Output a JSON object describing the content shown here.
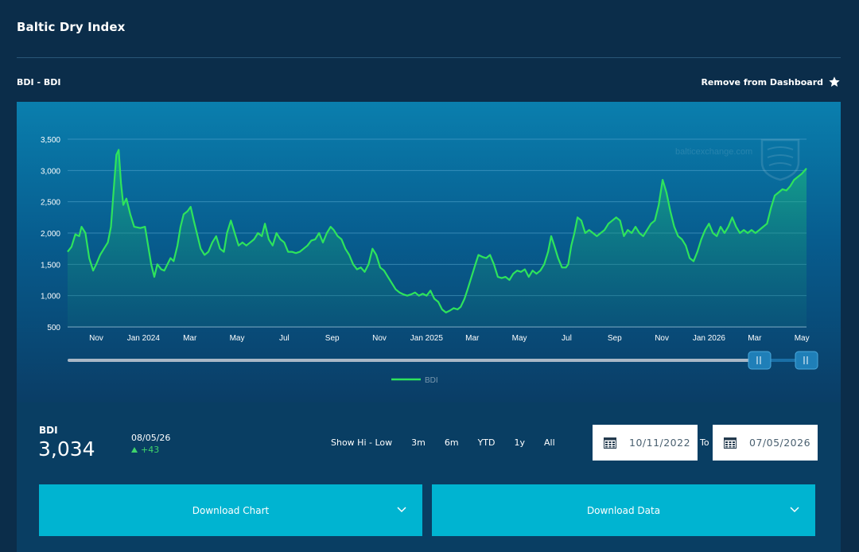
{
  "header": {
    "title": "Baltic Dry Index"
  },
  "series_label": "BDI - BDI",
  "dashboard_link": {
    "label": "Remove from Dashboard",
    "icon": "star-icon"
  },
  "watermark": {
    "text": "balticexchange.com"
  },
  "colors": {
    "line": "#2ee35c",
    "accent": "#00b4d1",
    "background": "#0b2d4a"
  },
  "chart_data": {
    "type": "area",
    "title": "",
    "xlabel": "",
    "ylabel": "",
    "ylim": [
      500,
      3500
    ],
    "y_ticks": [
      500,
      1000,
      1500,
      2000,
      2500,
      3000,
      3500
    ],
    "y_tick_labels": [
      "500",
      "1,000",
      "1,500",
      "2,000",
      "2,500",
      "3,000",
      "3,500"
    ],
    "x_range": [
      "2023-09-25",
      "2026-05-07"
    ],
    "x_ticks": [
      {
        "date": "2023-11-01",
        "label": "Nov"
      },
      {
        "date": "2024-01-01",
        "label": "Jan 2024"
      },
      {
        "date": "2024-03-01",
        "label": "Mar"
      },
      {
        "date": "2024-05-01",
        "label": "May"
      },
      {
        "date": "2024-07-01",
        "label": "Jul"
      },
      {
        "date": "2024-09-01",
        "label": "Sep"
      },
      {
        "date": "2024-11-01",
        "label": "Nov"
      },
      {
        "date": "2025-01-01",
        "label": "Jan 2025"
      },
      {
        "date": "2025-03-01",
        "label": "Mar"
      },
      {
        "date": "2025-05-01",
        "label": "May"
      },
      {
        "date": "2025-07-01",
        "label": "Jul"
      },
      {
        "date": "2025-09-01",
        "label": "Sep"
      },
      {
        "date": "2025-11-01",
        "label": "Nov"
      },
      {
        "date": "2026-01-01",
        "label": "Jan 2026"
      },
      {
        "date": "2026-03-01",
        "label": "Mar"
      },
      {
        "date": "2026-05-01",
        "label": "May"
      }
    ],
    "grid": true,
    "legend": {
      "position": "bottom-center",
      "entries": [
        "BDI"
      ]
    },
    "series": [
      {
        "name": "BDI",
        "points": [
          [
            "2023-09-25",
            1700
          ],
          [
            "2023-09-30",
            1780
          ],
          [
            "2023-10-05",
            1980
          ],
          [
            "2023-10-10",
            1950
          ],
          [
            "2023-10-13",
            2100
          ],
          [
            "2023-10-18",
            2000
          ],
          [
            "2023-10-23",
            1600
          ],
          [
            "2023-10-28",
            1400
          ],
          [
            "2023-11-01",
            1500
          ],
          [
            "2023-11-06",
            1650
          ],
          [
            "2023-11-11",
            1750
          ],
          [
            "2023-11-16",
            1850
          ],
          [
            "2023-11-20",
            2100
          ],
          [
            "2023-11-23",
            2600
          ],
          [
            "2023-11-27",
            3250
          ],
          [
            "2023-11-30",
            3330
          ],
          [
            "2023-12-03",
            2800
          ],
          [
            "2023-12-06",
            2450
          ],
          [
            "2023-12-10",
            2550
          ],
          [
            "2023-12-15",
            2300
          ],
          [
            "2023-12-20",
            2100
          ],
          [
            "2023-12-28",
            2080
          ],
          [
            "2024-01-03",
            2100
          ],
          [
            "2024-01-07",
            1800
          ],
          [
            "2024-01-11",
            1500
          ],
          [
            "2024-01-15",
            1300
          ],
          [
            "2024-01-19",
            1500
          ],
          [
            "2024-01-24",
            1420
          ],
          [
            "2024-01-28",
            1400
          ],
          [
            "2024-02-01",
            1500
          ],
          [
            "2024-02-05",
            1600
          ],
          [
            "2024-02-09",
            1550
          ],
          [
            "2024-02-14",
            1800
          ],
          [
            "2024-02-18",
            2100
          ],
          [
            "2024-02-22",
            2300
          ],
          [
            "2024-02-27",
            2350
          ],
          [
            "2024-03-02",
            2420
          ],
          [
            "2024-03-06",
            2200
          ],
          [
            "2024-03-10",
            2000
          ],
          [
            "2024-03-15",
            1750
          ],
          [
            "2024-03-20",
            1650
          ],
          [
            "2024-03-25",
            1700
          ],
          [
            "2024-03-30",
            1850
          ],
          [
            "2024-04-04",
            1950
          ],
          [
            "2024-04-09",
            1750
          ],
          [
            "2024-04-14",
            1700
          ],
          [
            "2024-04-18",
            2000
          ],
          [
            "2024-04-23",
            2200
          ],
          [
            "2024-04-28",
            2000
          ],
          [
            "2024-05-03",
            1800
          ],
          [
            "2024-05-08",
            1850
          ],
          [
            "2024-05-13",
            1800
          ],
          [
            "2024-05-18",
            1850
          ],
          [
            "2024-05-23",
            1900
          ],
          [
            "2024-05-28",
            2000
          ],
          [
            "2024-06-02",
            1950
          ],
          [
            "2024-06-06",
            2150
          ],
          [
            "2024-06-11",
            1900
          ],
          [
            "2024-06-16",
            1800
          ],
          [
            "2024-06-21",
            2000
          ],
          [
            "2024-06-26",
            1900
          ],
          [
            "2024-07-01",
            1850
          ],
          [
            "2024-07-06",
            1700
          ],
          [
            "2024-07-11",
            1700
          ],
          [
            "2024-07-16",
            1680
          ],
          [
            "2024-07-21",
            1700
          ],
          [
            "2024-07-26",
            1750
          ],
          [
            "2024-07-31",
            1800
          ],
          [
            "2024-08-05",
            1880
          ],
          [
            "2024-08-10",
            1900
          ],
          [
            "2024-08-15",
            2000
          ],
          [
            "2024-08-20",
            1850
          ],
          [
            "2024-08-25",
            2000
          ],
          [
            "2024-08-30",
            2100
          ],
          [
            "2024-09-03",
            2050
          ],
          [
            "2024-09-08",
            1950
          ],
          [
            "2024-09-13",
            1900
          ],
          [
            "2024-09-18",
            1750
          ],
          [
            "2024-09-23",
            1650
          ],
          [
            "2024-09-28",
            1500
          ],
          [
            "2024-10-03",
            1420
          ],
          [
            "2024-10-08",
            1450
          ],
          [
            "2024-10-13",
            1380
          ],
          [
            "2024-10-18",
            1500
          ],
          [
            "2024-10-23",
            1750
          ],
          [
            "2024-10-28",
            1650
          ],
          [
            "2024-11-02",
            1450
          ],
          [
            "2024-11-07",
            1400
          ],
          [
            "2024-11-12",
            1300
          ],
          [
            "2024-11-17",
            1200
          ],
          [
            "2024-11-22",
            1100
          ],
          [
            "2024-11-27",
            1050
          ],
          [
            "2024-12-02",
            1020
          ],
          [
            "2024-12-07",
            1000
          ],
          [
            "2024-12-12",
            1020
          ],
          [
            "2024-12-17",
            1050
          ],
          [
            "2024-12-22",
            1000
          ],
          [
            "2024-12-27",
            1030
          ],
          [
            "2025-01-01",
            1000
          ],
          [
            "2025-01-06",
            1080
          ],
          [
            "2025-01-11",
            950
          ],
          [
            "2025-01-16",
            900
          ],
          [
            "2025-01-21",
            780
          ],
          [
            "2025-01-26",
            730
          ],
          [
            "2025-01-31",
            760
          ],
          [
            "2025-02-05",
            800
          ],
          [
            "2025-02-10",
            780
          ],
          [
            "2025-02-14",
            820
          ],
          [
            "2025-02-19",
            950
          ],
          [
            "2025-02-23",
            1100
          ],
          [
            "2025-02-28",
            1300
          ],
          [
            "2025-03-05",
            1500
          ],
          [
            "2025-03-09",
            1650
          ],
          [
            "2025-03-14",
            1620
          ],
          [
            "2025-03-19",
            1600
          ],
          [
            "2025-03-24",
            1650
          ],
          [
            "2025-03-29",
            1500
          ],
          [
            "2025-04-03",
            1300
          ],
          [
            "2025-04-08",
            1280
          ],
          [
            "2025-04-13",
            1300
          ],
          [
            "2025-04-18",
            1250
          ],
          [
            "2025-04-23",
            1350
          ],
          [
            "2025-04-28",
            1400
          ],
          [
            "2025-05-03",
            1380
          ],
          [
            "2025-05-08",
            1420
          ],
          [
            "2025-05-13",
            1300
          ],
          [
            "2025-05-18",
            1400
          ],
          [
            "2025-05-23",
            1350
          ],
          [
            "2025-05-28",
            1400
          ],
          [
            "2025-06-02",
            1500
          ],
          [
            "2025-06-07",
            1700
          ],
          [
            "2025-06-11",
            1950
          ],
          [
            "2025-06-15",
            1800
          ],
          [
            "2025-06-20",
            1600
          ],
          [
            "2025-06-25",
            1450
          ],
          [
            "2025-06-30",
            1450
          ],
          [
            "2025-07-03",
            1500
          ],
          [
            "2025-07-07",
            1800
          ],
          [
            "2025-07-11",
            2000
          ],
          [
            "2025-07-15",
            2250
          ],
          [
            "2025-07-20",
            2200
          ],
          [
            "2025-07-25",
            2000
          ],
          [
            "2025-07-30",
            2050
          ],
          [
            "2025-08-04",
            2000
          ],
          [
            "2025-08-09",
            1950
          ],
          [
            "2025-08-14",
            2000
          ],
          [
            "2025-08-19",
            2050
          ],
          [
            "2025-08-24",
            2150
          ],
          [
            "2025-08-29",
            2200
          ],
          [
            "2025-09-03",
            2250
          ],
          [
            "2025-09-08",
            2200
          ],
          [
            "2025-09-13",
            1950
          ],
          [
            "2025-09-18",
            2050
          ],
          [
            "2025-09-23",
            2000
          ],
          [
            "2025-09-28",
            2100
          ],
          [
            "2025-10-03",
            2000
          ],
          [
            "2025-10-08",
            1950
          ],
          [
            "2025-10-13",
            2050
          ],
          [
            "2025-10-18",
            2150
          ],
          [
            "2025-10-23",
            2200
          ],
          [
            "2025-10-28",
            2450
          ],
          [
            "2025-11-02",
            2850
          ],
          [
            "2025-11-07",
            2650
          ],
          [
            "2025-11-12",
            2350
          ],
          [
            "2025-11-17",
            2100
          ],
          [
            "2025-11-22",
            1950
          ],
          [
            "2025-11-27",
            1900
          ],
          [
            "2025-12-02",
            1800
          ],
          [
            "2025-12-07",
            1600
          ],
          [
            "2025-12-12",
            1550
          ],
          [
            "2025-12-17",
            1700
          ],
          [
            "2025-12-22",
            1900
          ],
          [
            "2025-12-27",
            2050
          ],
          [
            "2026-01-01",
            2150
          ],
          [
            "2026-01-06",
            2000
          ],
          [
            "2026-01-11",
            1950
          ],
          [
            "2026-01-16",
            2100
          ],
          [
            "2026-01-21",
            2000
          ],
          [
            "2026-01-26",
            2100
          ],
          [
            "2026-01-31",
            2250
          ],
          [
            "2026-02-05",
            2100
          ],
          [
            "2026-02-10",
            2000
          ],
          [
            "2026-02-15",
            2050
          ],
          [
            "2026-02-20",
            2000
          ],
          [
            "2026-02-25",
            2050
          ],
          [
            "2026-03-02",
            2000
          ],
          [
            "2026-03-07",
            2050
          ],
          [
            "2026-03-12",
            2100
          ],
          [
            "2026-03-17",
            2150
          ],
          [
            "2026-03-22",
            2400
          ],
          [
            "2026-03-27",
            2600
          ],
          [
            "2026-04-01",
            2650
          ],
          [
            "2026-04-06",
            2700
          ],
          [
            "2026-04-11",
            2680
          ],
          [
            "2026-04-16",
            2750
          ],
          [
            "2026-04-21",
            2850
          ],
          [
            "2026-04-26",
            2900
          ],
          [
            "2026-05-01",
            2950
          ],
          [
            "2026-05-07",
            3034
          ]
        ]
      }
    ]
  },
  "summary": {
    "name": "BDI",
    "value": "3,034",
    "date": "08/05/26",
    "change": "+43"
  },
  "range_buttons": [
    "Show Hi - Low",
    "3m",
    "6m",
    "YTD",
    "1y",
    "All"
  ],
  "date_range": {
    "from": "10/11/2022",
    "to_label": "To",
    "to": "07/05/2026"
  },
  "downloads": {
    "chart_label": "Download Chart",
    "data_label": "Download Data"
  }
}
